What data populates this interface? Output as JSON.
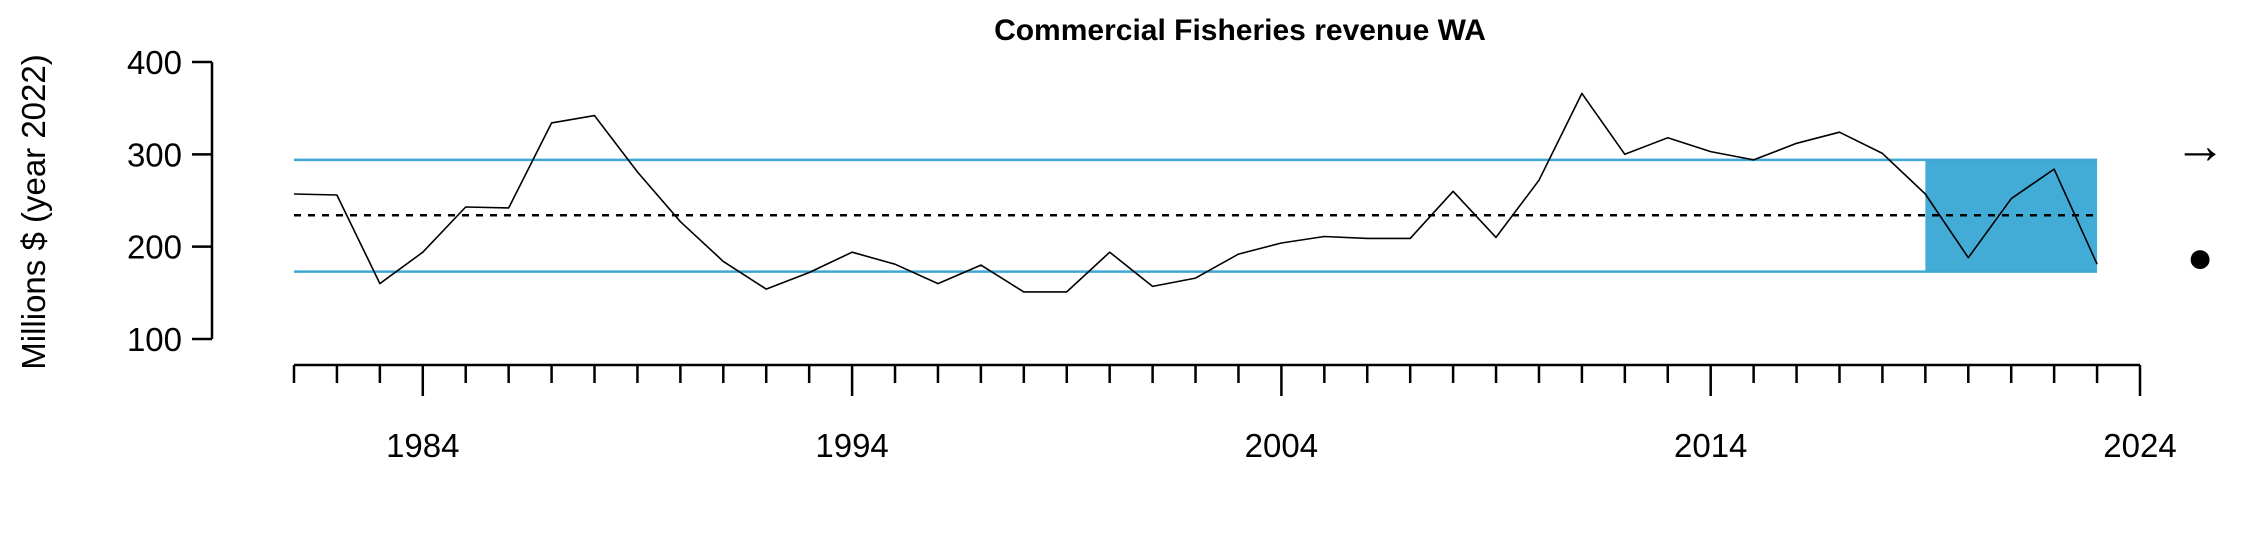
{
  "chart_data": {
    "type": "line",
    "title": "Commercial Fisheries revenue WA",
    "xlabel": "",
    "ylabel": "Millions $ (year 2022)",
    "xlim": [
      1981,
      2024
    ],
    "ylim": [
      100,
      400
    ],
    "x_ticks": [
      1984,
      1994,
      2004,
      2014,
      2024
    ],
    "y_ticks": [
      100,
      200,
      300,
      400
    ],
    "grid": false,
    "series": [
      {
        "x": [
          1981,
          1982,
          1983,
          1984,
          1985,
          1986,
          1987,
          1988,
          1989,
          1990,
          1991,
          1992,
          1993,
          1994,
          1995,
          1996,
          1997,
          1998,
          1999,
          2000,
          2001,
          2002,
          2003,
          2004,
          2005,
          2006,
          2007,
          2008,
          2009,
          2010,
          2011,
          2012,
          2013,
          2014,
          2015,
          2016,
          2017,
          2018,
          2019,
          2020,
          2021,
          2022,
          2023
        ],
        "values": [
          257,
          256,
          160,
          194,
          243,
          242,
          334,
          342,
          281,
          227,
          184,
          154,
          172,
          194,
          181,
          160,
          180,
          151,
          151,
          194,
          157,
          166,
          192,
          204,
          211,
          209,
          209,
          260,
          210,
          272,
          366,
          300,
          318,
          303,
          294,
          312,
          324,
          301,
          257,
          188,
          252,
          284,
          181
        ]
      }
    ],
    "reference_lines": {
      "mean": 234,
      "upper_sd": 294,
      "lower_sd": 173
    },
    "highlight_window": {
      "x_start": 2019,
      "x_end": 2023
    },
    "indicators": {
      "trend": "→",
      "status": "●"
    },
    "colors": {
      "line": "#000000",
      "sd_lines": "#3ea8d5",
      "highlight": "#42acd6",
      "mean_line": "#000000"
    }
  }
}
